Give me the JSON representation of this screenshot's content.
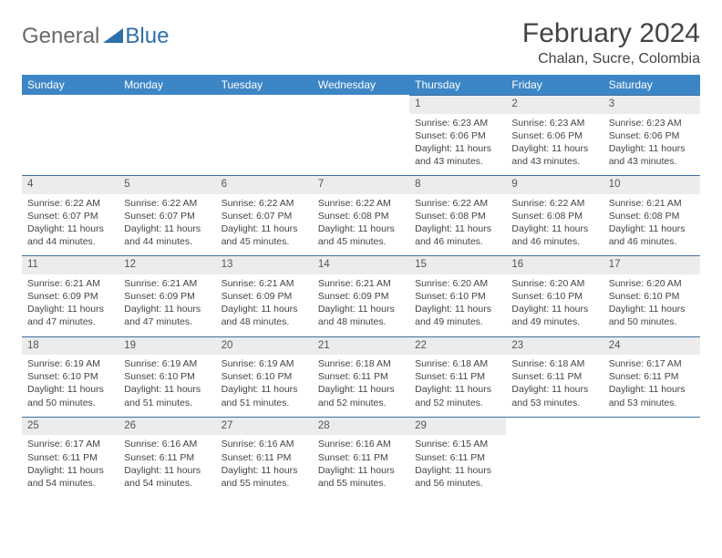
{
  "logo": {
    "general": "General",
    "blue": "Blue"
  },
  "title": "February 2024",
  "location": "Chalan, Sucre, Colombia",
  "colors": {
    "header_bg": "#3d86c6",
    "header_text": "#ffffff",
    "daynum_bg": "#ececec",
    "row_border": "#3d6fa0",
    "text": "#444444",
    "logo_blue": "#2f6fa7"
  },
  "day_headers": [
    "Sunday",
    "Monday",
    "Tuesday",
    "Wednesday",
    "Thursday",
    "Friday",
    "Saturday"
  ],
  "weeks": [
    [
      {
        "n": "",
        "sr": "",
        "ss": "",
        "dl": ""
      },
      {
        "n": "",
        "sr": "",
        "ss": "",
        "dl": ""
      },
      {
        "n": "",
        "sr": "",
        "ss": "",
        "dl": ""
      },
      {
        "n": "",
        "sr": "",
        "ss": "",
        "dl": ""
      },
      {
        "n": "1",
        "sr": "Sunrise: 6:23 AM",
        "ss": "Sunset: 6:06 PM",
        "dl": "Daylight: 11 hours and 43 minutes."
      },
      {
        "n": "2",
        "sr": "Sunrise: 6:23 AM",
        "ss": "Sunset: 6:06 PM",
        "dl": "Daylight: 11 hours and 43 minutes."
      },
      {
        "n": "3",
        "sr": "Sunrise: 6:23 AM",
        "ss": "Sunset: 6:06 PM",
        "dl": "Daylight: 11 hours and 43 minutes."
      }
    ],
    [
      {
        "n": "4",
        "sr": "Sunrise: 6:22 AM",
        "ss": "Sunset: 6:07 PM",
        "dl": "Daylight: 11 hours and 44 minutes."
      },
      {
        "n": "5",
        "sr": "Sunrise: 6:22 AM",
        "ss": "Sunset: 6:07 PM",
        "dl": "Daylight: 11 hours and 44 minutes."
      },
      {
        "n": "6",
        "sr": "Sunrise: 6:22 AM",
        "ss": "Sunset: 6:07 PM",
        "dl": "Daylight: 11 hours and 45 minutes."
      },
      {
        "n": "7",
        "sr": "Sunrise: 6:22 AM",
        "ss": "Sunset: 6:08 PM",
        "dl": "Daylight: 11 hours and 45 minutes."
      },
      {
        "n": "8",
        "sr": "Sunrise: 6:22 AM",
        "ss": "Sunset: 6:08 PM",
        "dl": "Daylight: 11 hours and 46 minutes."
      },
      {
        "n": "9",
        "sr": "Sunrise: 6:22 AM",
        "ss": "Sunset: 6:08 PM",
        "dl": "Daylight: 11 hours and 46 minutes."
      },
      {
        "n": "10",
        "sr": "Sunrise: 6:21 AM",
        "ss": "Sunset: 6:08 PM",
        "dl": "Daylight: 11 hours and 46 minutes."
      }
    ],
    [
      {
        "n": "11",
        "sr": "Sunrise: 6:21 AM",
        "ss": "Sunset: 6:09 PM",
        "dl": "Daylight: 11 hours and 47 minutes."
      },
      {
        "n": "12",
        "sr": "Sunrise: 6:21 AM",
        "ss": "Sunset: 6:09 PM",
        "dl": "Daylight: 11 hours and 47 minutes."
      },
      {
        "n": "13",
        "sr": "Sunrise: 6:21 AM",
        "ss": "Sunset: 6:09 PM",
        "dl": "Daylight: 11 hours and 48 minutes."
      },
      {
        "n": "14",
        "sr": "Sunrise: 6:21 AM",
        "ss": "Sunset: 6:09 PM",
        "dl": "Daylight: 11 hours and 48 minutes."
      },
      {
        "n": "15",
        "sr": "Sunrise: 6:20 AM",
        "ss": "Sunset: 6:10 PM",
        "dl": "Daylight: 11 hours and 49 minutes."
      },
      {
        "n": "16",
        "sr": "Sunrise: 6:20 AM",
        "ss": "Sunset: 6:10 PM",
        "dl": "Daylight: 11 hours and 49 minutes."
      },
      {
        "n": "17",
        "sr": "Sunrise: 6:20 AM",
        "ss": "Sunset: 6:10 PM",
        "dl": "Daylight: 11 hours and 50 minutes."
      }
    ],
    [
      {
        "n": "18",
        "sr": "Sunrise: 6:19 AM",
        "ss": "Sunset: 6:10 PM",
        "dl": "Daylight: 11 hours and 50 minutes."
      },
      {
        "n": "19",
        "sr": "Sunrise: 6:19 AM",
        "ss": "Sunset: 6:10 PM",
        "dl": "Daylight: 11 hours and 51 minutes."
      },
      {
        "n": "20",
        "sr": "Sunrise: 6:19 AM",
        "ss": "Sunset: 6:10 PM",
        "dl": "Daylight: 11 hours and 51 minutes."
      },
      {
        "n": "21",
        "sr": "Sunrise: 6:18 AM",
        "ss": "Sunset: 6:11 PM",
        "dl": "Daylight: 11 hours and 52 minutes."
      },
      {
        "n": "22",
        "sr": "Sunrise: 6:18 AM",
        "ss": "Sunset: 6:11 PM",
        "dl": "Daylight: 11 hours and 52 minutes."
      },
      {
        "n": "23",
        "sr": "Sunrise: 6:18 AM",
        "ss": "Sunset: 6:11 PM",
        "dl": "Daylight: 11 hours and 53 minutes."
      },
      {
        "n": "24",
        "sr": "Sunrise: 6:17 AM",
        "ss": "Sunset: 6:11 PM",
        "dl": "Daylight: 11 hours and 53 minutes."
      }
    ],
    [
      {
        "n": "25",
        "sr": "Sunrise: 6:17 AM",
        "ss": "Sunset: 6:11 PM",
        "dl": "Daylight: 11 hours and 54 minutes."
      },
      {
        "n": "26",
        "sr": "Sunrise: 6:16 AM",
        "ss": "Sunset: 6:11 PM",
        "dl": "Daylight: 11 hours and 54 minutes."
      },
      {
        "n": "27",
        "sr": "Sunrise: 6:16 AM",
        "ss": "Sunset: 6:11 PM",
        "dl": "Daylight: 11 hours and 55 minutes."
      },
      {
        "n": "28",
        "sr": "Sunrise: 6:16 AM",
        "ss": "Sunset: 6:11 PM",
        "dl": "Daylight: 11 hours and 55 minutes."
      },
      {
        "n": "29",
        "sr": "Sunrise: 6:15 AM",
        "ss": "Sunset: 6:11 PM",
        "dl": "Daylight: 11 hours and 56 minutes."
      },
      {
        "n": "",
        "sr": "",
        "ss": "",
        "dl": ""
      },
      {
        "n": "",
        "sr": "",
        "ss": "",
        "dl": ""
      }
    ]
  ]
}
